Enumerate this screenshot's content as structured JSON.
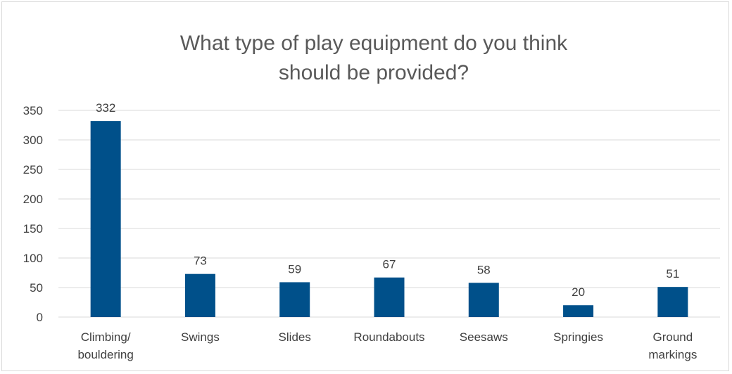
{
  "chart_data": {
    "type": "bar",
    "title_lines": [
      "What type of play equipment do you think",
      "should be provided?"
    ],
    "categories": [
      [
        "Climbing/",
        "bouldering"
      ],
      [
        "Swings"
      ],
      [
        "Slides"
      ],
      [
        "Roundabouts"
      ],
      [
        "Seesaws"
      ],
      [
        "Springies"
      ],
      [
        "Ground",
        "markings"
      ]
    ],
    "values": [
      332,
      73,
      59,
      67,
      58,
      20,
      51
    ],
    "ylim": [
      0,
      350
    ],
    "yticks": [
      0,
      50,
      100,
      150,
      200,
      250,
      300,
      350
    ],
    "grid": true,
    "legend": "none",
    "data_labels": true,
    "colors": {
      "bar": "#00508a",
      "grid": "#d9d9d9",
      "text": "#404040",
      "title": "#595959"
    }
  }
}
